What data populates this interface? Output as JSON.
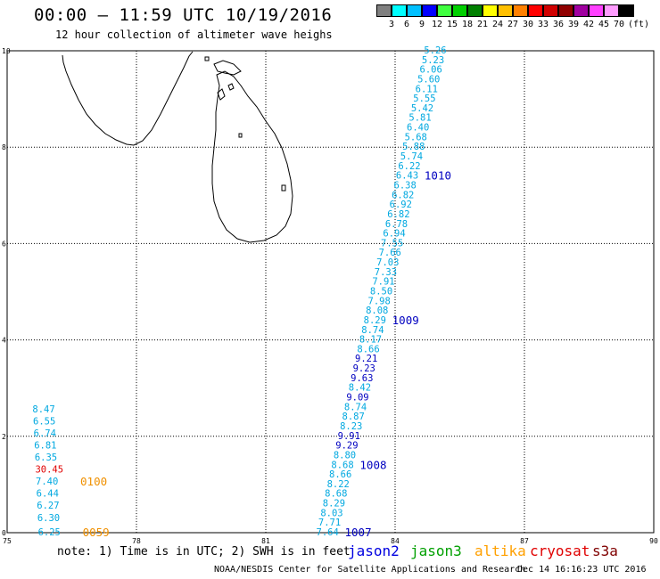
{
  "header": {
    "title": "00:00 – 11:59 UTC 10/19/2016",
    "subtitle": "12 hour collection of altimeter wave heighs"
  },
  "legend": {
    "unit": "(ft)",
    "bins": [
      {
        "label": "3",
        "color": "#808080"
      },
      {
        "label": "6",
        "color": "#00ffff"
      },
      {
        "label": "9",
        "color": "#00c0ff"
      },
      {
        "label": "12",
        "color": "#0000ff"
      },
      {
        "label": "15",
        "color": "#40ff40"
      },
      {
        "label": "18",
        "color": "#00d000"
      },
      {
        "label": "21",
        "color": "#008000"
      },
      {
        "label": "24",
        "color": "#ffff00"
      },
      {
        "label": "27",
        "color": "#ffc000"
      },
      {
        "label": "30",
        "color": "#ff8000"
      },
      {
        "label": "33",
        "color": "#ff0000"
      },
      {
        "label": "36",
        "color": "#d00000"
      },
      {
        "label": "39",
        "color": "#900000"
      },
      {
        "label": "42",
        "color": "#a000a0"
      },
      {
        "label": "45",
        "color": "#ff40ff"
      },
      {
        "label": "70",
        "color": "#ff9cff"
      },
      {
        "label": "",
        "color": "#000000"
      }
    ]
  },
  "axes": {
    "x_ticks": [
      "75",
      "78",
      "81",
      "84",
      "87",
      "90"
    ],
    "y_ticks": [
      "0",
      "2",
      "4",
      "6",
      "8",
      "10"
    ]
  },
  "map_data": {
    "lon_range": [
      75,
      90
    ],
    "lat_range": [
      0,
      10
    ],
    "track_main": {
      "color": "#00a8e0",
      "highlight_color": "#0000c0",
      "points": [
        {
          "lat": 0.0,
          "v": "7.64"
        },
        {
          "lat": 0.2,
          "v": "7.71"
        },
        {
          "lat": 0.4,
          "v": "8.03"
        },
        {
          "lat": 0.6,
          "v": "8.29"
        },
        {
          "lat": 0.8,
          "v": "8.68"
        },
        {
          "lat": 1.0,
          "v": "8.22"
        },
        {
          "lat": 1.2,
          "v": "8.66"
        },
        {
          "lat": 1.4,
          "v": "8.68"
        },
        {
          "lat": 1.6,
          "v": "8.80"
        },
        {
          "lat": 1.8,
          "v": "9.29",
          "hl": true
        },
        {
          "lat": 2.0,
          "v": "9.91",
          "hl": true
        },
        {
          "lat": 2.2,
          "v": "8.23"
        },
        {
          "lat": 2.4,
          "v": "8.87"
        },
        {
          "lat": 2.6,
          "v": "8.74"
        },
        {
          "lat": 2.8,
          "v": "9.09",
          "hl": true
        },
        {
          "lat": 3.0,
          "v": "8.42"
        },
        {
          "lat": 3.2,
          "v": "9.63",
          "hl": true
        },
        {
          "lat": 3.4,
          "v": "9.23",
          "hl": true
        },
        {
          "lat": 3.6,
          "v": "9.21",
          "hl": true
        },
        {
          "lat": 3.8,
          "v": "8.66"
        },
        {
          "lat": 4.0,
          "v": "8.17"
        },
        {
          "lat": 4.2,
          "v": "8.74"
        },
        {
          "lat": 4.4,
          "v": "8.29"
        },
        {
          "lat": 4.6,
          "v": "8.08"
        },
        {
          "lat": 4.8,
          "v": "7.98"
        },
        {
          "lat": 5.0,
          "v": "8.50"
        },
        {
          "lat": 5.2,
          "v": "7.91"
        },
        {
          "lat": 5.4,
          "v": "7.33"
        },
        {
          "lat": 5.6,
          "v": "7.03"
        },
        {
          "lat": 5.8,
          "v": "7.66"
        },
        {
          "lat": 6.0,
          "v": "7.55"
        },
        {
          "lat": 6.2,
          "v": "6.94"
        },
        {
          "lat": 6.4,
          "v": "6.78"
        },
        {
          "lat": 6.6,
          "v": "6.82"
        },
        {
          "lat": 6.8,
          "v": "6.92"
        },
        {
          "lat": 7.0,
          "v": "6.82"
        },
        {
          "lat": 7.2,
          "v": "6.38"
        },
        {
          "lat": 7.4,
          "v": "6.43"
        },
        {
          "lat": 7.6,
          "v": "6.22"
        },
        {
          "lat": 7.8,
          "v": "5.74"
        },
        {
          "lat": 8.0,
          "v": "5.88"
        },
        {
          "lat": 8.2,
          "v": "5.68"
        },
        {
          "lat": 8.4,
          "v": "6.40"
        },
        {
          "lat": 8.6,
          "v": "5.81"
        },
        {
          "lat": 8.8,
          "v": "5.42"
        },
        {
          "lat": 9.0,
          "v": "5.55"
        },
        {
          "lat": 9.2,
          "v": "6.11"
        },
        {
          "lat": 9.4,
          "v": "5.60"
        },
        {
          "lat": 9.6,
          "v": "6.06"
        },
        {
          "lat": 9.8,
          "v": "5.23"
        },
        {
          "lat": 10.0,
          "v": "5.26"
        }
      ],
      "times": [
        {
          "lat": 0.0,
          "label": "1007"
        },
        {
          "lat": 1.4,
          "label": "1008"
        },
        {
          "lat": 4.4,
          "label": "1009"
        },
        {
          "lat": 7.4,
          "label": "1010"
        }
      ]
    },
    "track_west": {
      "color": "#00a8e0",
      "points": [
        {
          "lat": 0.0,
          "v": "6.25"
        },
        {
          "lat": 0.3,
          "v": "6.30"
        },
        {
          "lat": 0.55,
          "v": "6.27"
        },
        {
          "lat": 0.8,
          "v": "6.44"
        },
        {
          "lat": 1.05,
          "v": "7.40"
        },
        {
          "lat": 1.3,
          "v": "30.45",
          "color": "#e00000"
        },
        {
          "lat": 1.55,
          "v": "6.35"
        },
        {
          "lat": 1.8,
          "v": "6.81"
        },
        {
          "lat": 2.05,
          "v": "6.74"
        },
        {
          "lat": 2.3,
          "v": "6.55"
        },
        {
          "lat": 2.55,
          "v": "8.47"
        }
      ],
      "times": [
        {
          "lat": 0.0,
          "label": "0059"
        },
        {
          "lat": 1.05,
          "label": "0100"
        }
      ],
      "time_color": "#f09000"
    }
  },
  "footer": {
    "note": "note: 1) Time is in UTC; 2) SWH is in feet",
    "satellites": [
      {
        "label": "jason2",
        "color": "#0000e0"
      },
      {
        "label": "jason3",
        "color": "#00a000"
      },
      {
        "label": "altika",
        "color": "#ffa000"
      },
      {
        "label": "cryosat",
        "color": "#e00000"
      },
      {
        "label": "s3a",
        "color": "#800000"
      }
    ],
    "credit": "NOAA/NESDIS Center for Satellite Applications and Research",
    "timestamp": "Dec 14 16:16:23 UTC 2016"
  }
}
